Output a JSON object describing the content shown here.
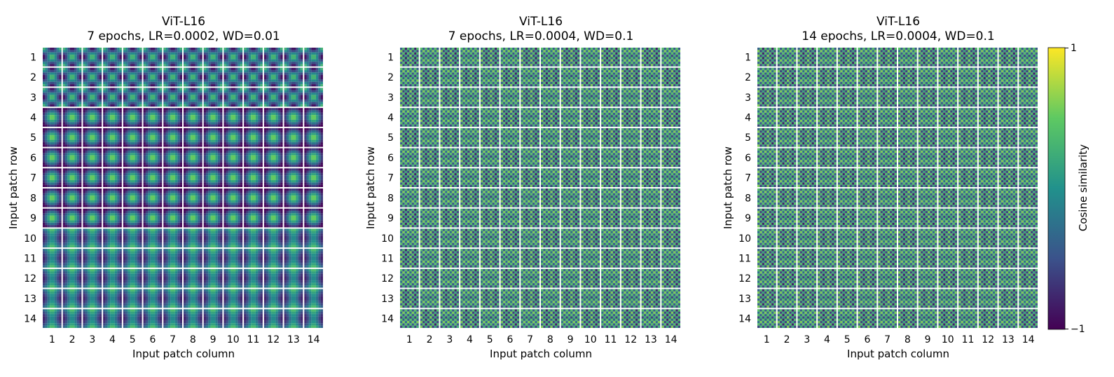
{
  "chart_data": [
    {
      "type": "heatmap",
      "title_line1": "ViT-L16",
      "title_line2": "7 epochs, LR=0.0002, WD=0.01",
      "xlabel": "Input patch column",
      "ylabel": "Input patch row",
      "x_tick_labels": [
        "1",
        "2",
        "3",
        "4",
        "5",
        "6",
        "7",
        "8",
        "9",
        "10",
        "11",
        "12",
        "13",
        "14"
      ],
      "y_tick_labels": [
        "1",
        "2",
        "3",
        "4",
        "5",
        "6",
        "7",
        "8",
        "9",
        "10",
        "11",
        "12",
        "13",
        "14"
      ],
      "grid_size": 14,
      "pattern": "smooth-low-frequency"
    },
    {
      "type": "heatmap",
      "title_line1": "ViT-L16",
      "title_line2": "7 epochs, LR=0.0004, WD=0.1",
      "xlabel": "Input patch column",
      "ylabel": "Input patch row",
      "x_tick_labels": [
        "1",
        "2",
        "3",
        "4",
        "5",
        "6",
        "7",
        "8",
        "9",
        "10",
        "11",
        "12",
        "13",
        "14"
      ],
      "y_tick_labels": [
        "1",
        "2",
        "3",
        "4",
        "5",
        "6",
        "7",
        "8",
        "9",
        "10",
        "11",
        "12",
        "13",
        "14"
      ],
      "grid_size": 14,
      "pattern": "high-frequency"
    },
    {
      "type": "heatmap",
      "title_line1": "ViT-L16",
      "title_line2": "14 epochs, LR=0.0004, WD=0.1",
      "xlabel": "Input patch column",
      "ylabel": "Input patch row",
      "x_tick_labels": [
        "1",
        "2",
        "3",
        "4",
        "5",
        "6",
        "7",
        "8",
        "9",
        "10",
        "11",
        "12",
        "13",
        "14"
      ],
      "y_tick_labels": [
        "1",
        "2",
        "3",
        "4",
        "5",
        "6",
        "7",
        "8",
        "9",
        "10",
        "11",
        "12",
        "13",
        "14"
      ],
      "grid_size": 14,
      "pattern": "high-frequency"
    }
  ],
  "colorbar": {
    "label": "Cosine similarity",
    "max_label": "1",
    "min_label": "−1",
    "vmin": -1,
    "vmax": 1,
    "colormap": "viridis",
    "colors": [
      "#440154",
      "#3b528b",
      "#21918c",
      "#5ec962",
      "#fde725"
    ]
  }
}
